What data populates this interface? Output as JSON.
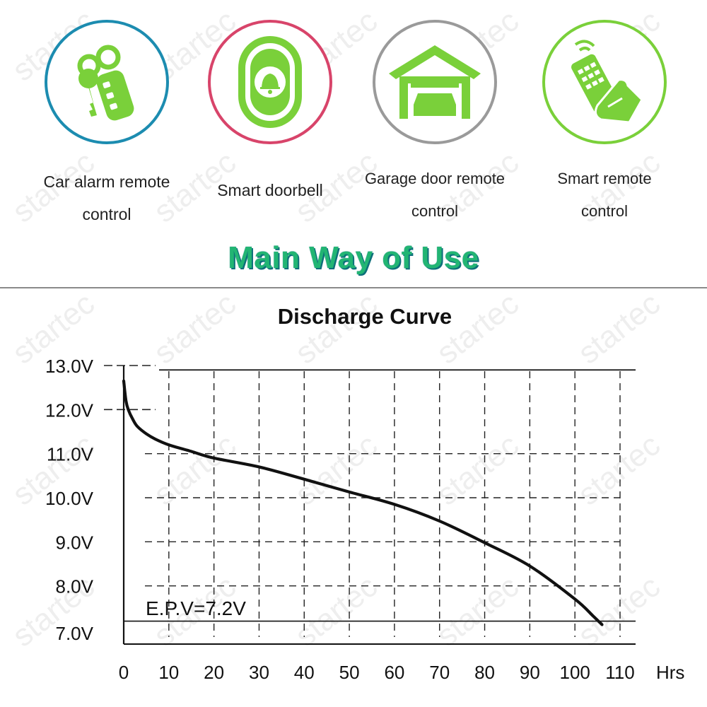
{
  "uses": [
    {
      "label_lines": [
        "Car alarm remote",
        "control"
      ],
      "icon": "car-key-icon",
      "ring_color": "#1c8cb0"
    },
    {
      "label_lines": [
        "Smart doorbell"
      ],
      "icon": "doorbell-icon",
      "ring_color": "#d8446a"
    },
    {
      "label_lines": [
        "Garage door remote",
        "control"
      ],
      "icon": "garage-icon",
      "ring_color": "#9a9a9a"
    },
    {
      "label_lines": [
        "Smart remote",
        "control"
      ],
      "icon": "hand-remote-icon",
      "ring_color": "#7ad03a"
    }
  ],
  "headline": "Main Way of Use",
  "watermark_text": "startec",
  "colors": {
    "icon_green": "#7ad03a",
    "headline_green": "#22b573",
    "curve": "#111111"
  },
  "chart_data": {
    "type": "line",
    "title": "Discharge Curve",
    "xlabel": "Hrs",
    "ylabel": "",
    "xlim": [
      0,
      110
    ],
    "ylim": [
      7.0,
      13.0
    ],
    "x_ticks": [
      "0",
      "10",
      "20",
      "30",
      "40",
      "50",
      "60",
      "70",
      "80",
      "90",
      "100",
      "110"
    ],
    "y_ticks": [
      "13.0V",
      "12.0V",
      "11.0V",
      "10.0V",
      "9.0V",
      "8.0V",
      "7.0V"
    ],
    "grid": true,
    "annotation": "E.P.V=7.2V",
    "epv": 7.2,
    "series": [
      {
        "x": [
          0,
          0.5,
          1,
          2,
          3,
          5,
          7,
          10,
          15,
          20,
          30,
          40,
          50,
          60,
          70,
          80,
          90,
          100,
          104,
          106
        ],
        "y": [
          12.65,
          12.2,
          12.0,
          11.78,
          11.62,
          11.45,
          11.33,
          11.2,
          11.05,
          10.9,
          10.7,
          10.42,
          10.13,
          9.85,
          9.47,
          8.98,
          8.45,
          7.7,
          7.32,
          7.12
        ]
      }
    ]
  }
}
